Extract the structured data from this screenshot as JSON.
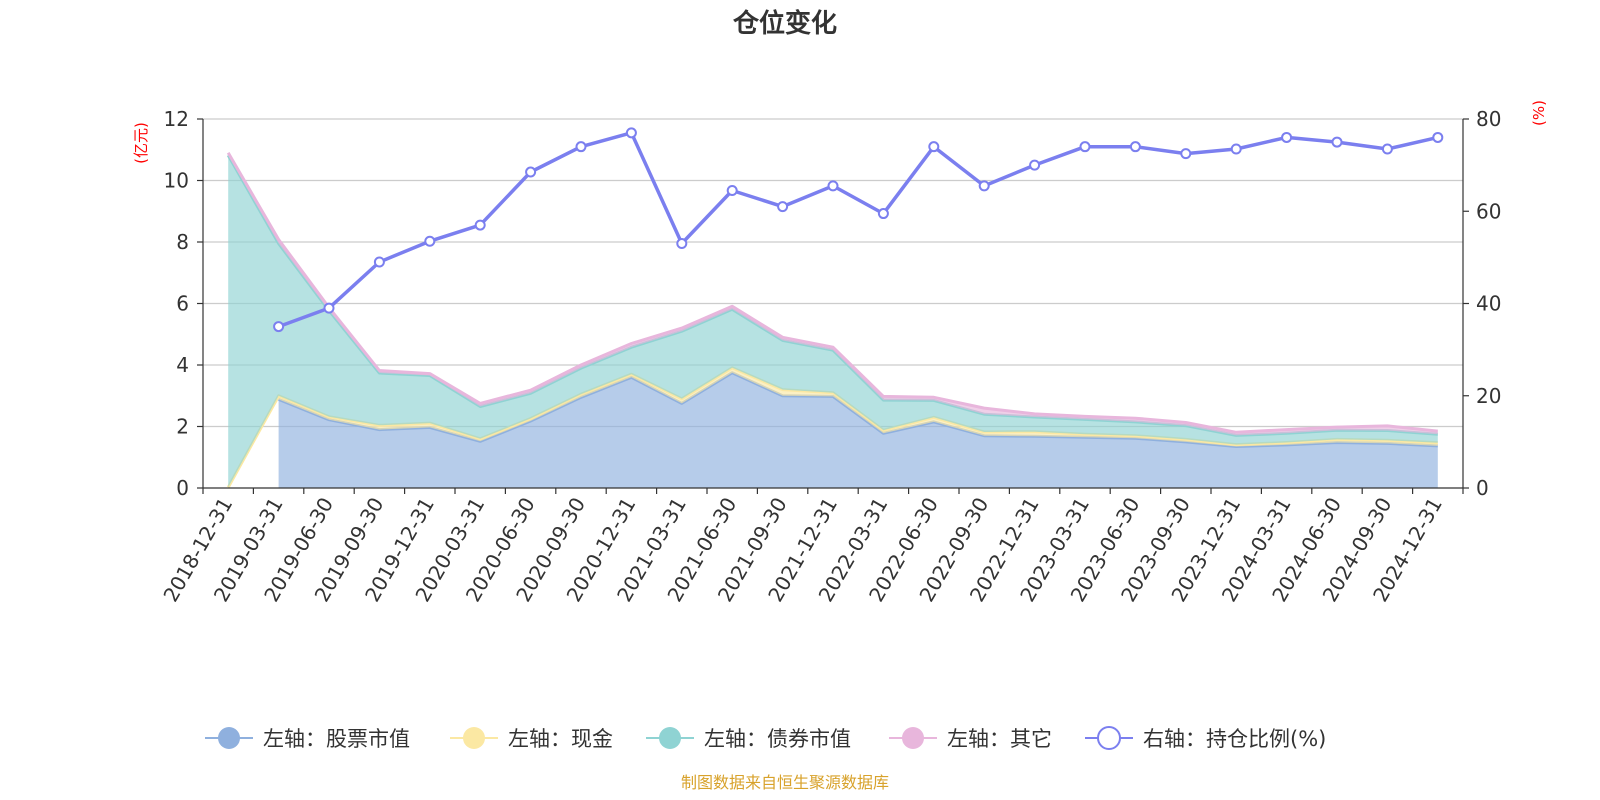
{
  "title": "仓位变化",
  "source": "制图数据来自恒生聚源数据库",
  "colors": {
    "stock": "#8fb0de",
    "cash": "#fbe8a3",
    "bond": "#8fd3d3",
    "other": "#e8b6dc",
    "ratio": "#7b7fef",
    "unit": "#ff0000",
    "source": "#d8a22b"
  },
  "legend": [
    {
      "key": "stock",
      "label": "左轴：股票市值",
      "icon": "filled-circle-icon"
    },
    {
      "key": "cash",
      "label": "左轴：现金",
      "icon": "filled-circle-icon"
    },
    {
      "key": "bond",
      "label": "左轴：债券市值",
      "icon": "filled-circle-icon"
    },
    {
      "key": "other",
      "label": "左轴：其它",
      "icon": "filled-circle-icon"
    },
    {
      "key": "ratio",
      "label": "右轴：持仓比例(%)",
      "icon": "hollow-circle-icon"
    }
  ],
  "chart_data": {
    "type": "area",
    "title": "仓位变化",
    "categories": [
      "2018-12-31",
      "2019-03-31",
      "2019-06-30",
      "2019-09-30",
      "2019-12-31",
      "2020-03-31",
      "2020-06-30",
      "2020-09-30",
      "2020-12-31",
      "2021-03-31",
      "2021-06-30",
      "2021-09-30",
      "2021-12-31",
      "2022-03-31",
      "2022-06-30",
      "2022-09-30",
      "2022-12-31",
      "2023-03-31",
      "2023-06-30",
      "2023-09-30",
      "2023-12-31",
      "2024-03-31",
      "2024-06-30",
      "2024-09-30",
      "2024-12-31"
    ],
    "left_axis": {
      "unit": "(亿元)",
      "ylim": [
        0,
        12
      ],
      "ticks": [
        0,
        2,
        4,
        6,
        8,
        10,
        12
      ]
    },
    "right_axis": {
      "unit": "(%)",
      "ylim": [
        0,
        80
      ],
      "ticks": [
        0,
        20,
        40,
        60,
        80
      ]
    },
    "stacked": true,
    "series": [
      {
        "key": "stock",
        "name": "左轴：股票市值",
        "axis": "left",
        "type": "area",
        "values": [
          null,
          2.88,
          2.22,
          1.9,
          1.97,
          1.52,
          2.18,
          2.95,
          3.6,
          2.75,
          3.75,
          3.0,
          2.98,
          1.78,
          2.15,
          1.7,
          1.68,
          1.65,
          1.62,
          1.5,
          1.35,
          1.4,
          1.48,
          1.45,
          1.37
        ]
      },
      {
        "key": "cash",
        "name": "左轴：现金",
        "axis": "left",
        "type": "area",
        "values": [
          0.02,
          0.12,
          0.1,
          0.14,
          0.14,
          0.08,
          0.08,
          0.1,
          0.1,
          0.15,
          0.16,
          0.2,
          0.12,
          0.1,
          0.15,
          0.12,
          0.15,
          0.1,
          0.08,
          0.08,
          0.06,
          0.08,
          0.1,
          0.1,
          0.1
        ]
      },
      {
        "key": "bond",
        "name": "左轴：债券市值",
        "axis": "left",
        "type": "area",
        "values": [
          10.8,
          4.95,
          3.45,
          1.7,
          1.55,
          1.05,
          0.82,
          0.85,
          0.88,
          2.2,
          1.9,
          1.6,
          1.38,
          0.98,
          0.55,
          0.58,
          0.48,
          0.48,
          0.45,
          0.45,
          0.3,
          0.3,
          0.3,
          0.32,
          0.28
        ]
      },
      {
        "key": "other",
        "name": "左轴：其它",
        "axis": "left",
        "type": "area",
        "values": [
          0.08,
          0.13,
          0.1,
          0.08,
          0.06,
          0.1,
          0.1,
          0.1,
          0.12,
          0.1,
          0.1,
          0.1,
          0.1,
          0.12,
          0.1,
          0.2,
          0.1,
          0.1,
          0.12,
          0.1,
          0.1,
          0.12,
          0.1,
          0.15,
          0.1
        ]
      },
      {
        "key": "ratio",
        "name": "右轴：持仓比例(%)",
        "axis": "right",
        "type": "line",
        "values": [
          null,
          35,
          39,
          49,
          53.5,
          57,
          68.5,
          74,
          77,
          53,
          64.5,
          61,
          65.5,
          59.5,
          74,
          65.5,
          70,
          74,
          74,
          72.5,
          73.5,
          76,
          75,
          73.5,
          76
        ]
      }
    ]
  }
}
